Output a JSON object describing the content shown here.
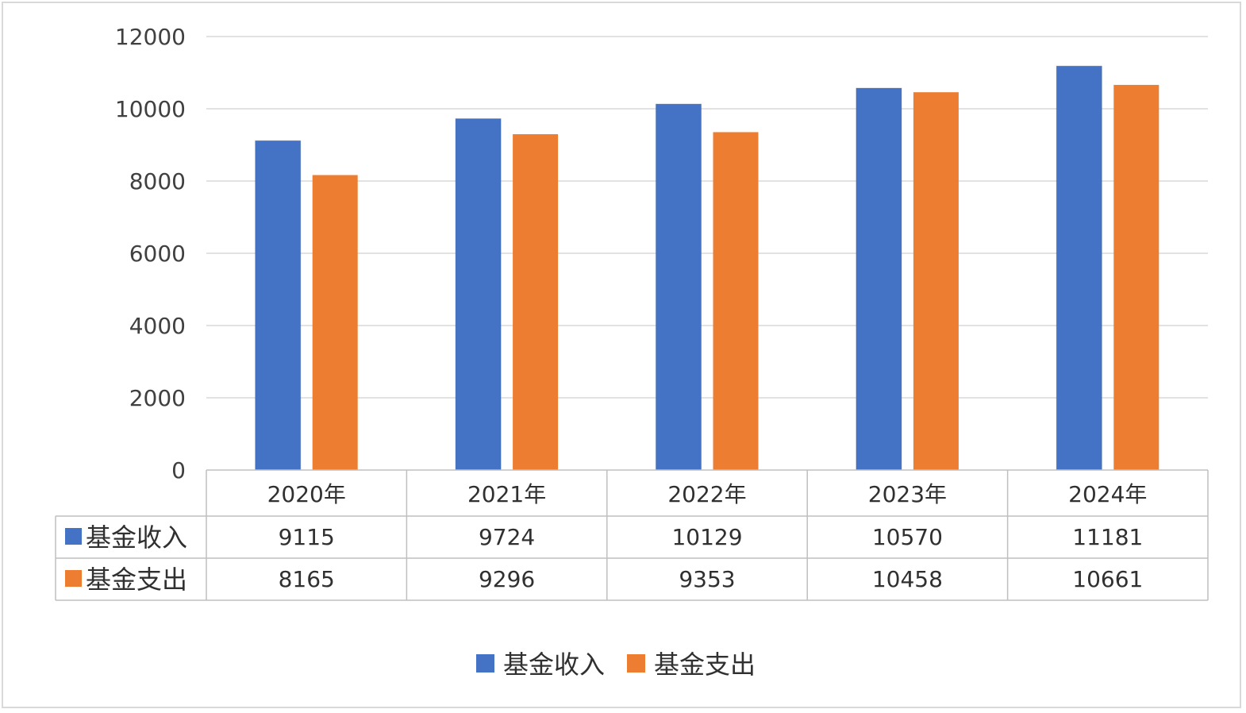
{
  "chart_data": {
    "type": "bar",
    "title": "",
    "xlabel": "",
    "ylabel": "",
    "categories": [
      "2020年",
      "2021年",
      "2022年",
      "2023年",
      "2024年"
    ],
    "series": [
      {
        "name": "基金收入",
        "color": "#4472C4",
        "values": [
          9115,
          9724,
          10129,
          10570,
          11181
        ]
      },
      {
        "name": "基金支出",
        "color": "#ED7D31",
        "values": [
          8165,
          9296,
          9353,
          10458,
          10661
        ]
      }
    ],
    "ylim": [
      0,
      12000
    ],
    "yticks": [
      "0",
      "2000",
      "4000",
      "6000",
      "8000",
      "10000",
      "12000"
    ],
    "grid": true,
    "data_table": true,
    "table_rows": [
      {
        "label": "基金收入",
        "values": [
          "9115",
          "9724",
          "10129",
          "10570",
          "11181"
        ]
      },
      {
        "label": "基金支出",
        "values": [
          "8165",
          "9296",
          "9353",
          "10458",
          "10661"
        ]
      }
    ],
    "legend": {
      "position": "bottom",
      "items": [
        "基金收入",
        "基金支出"
      ]
    }
  }
}
